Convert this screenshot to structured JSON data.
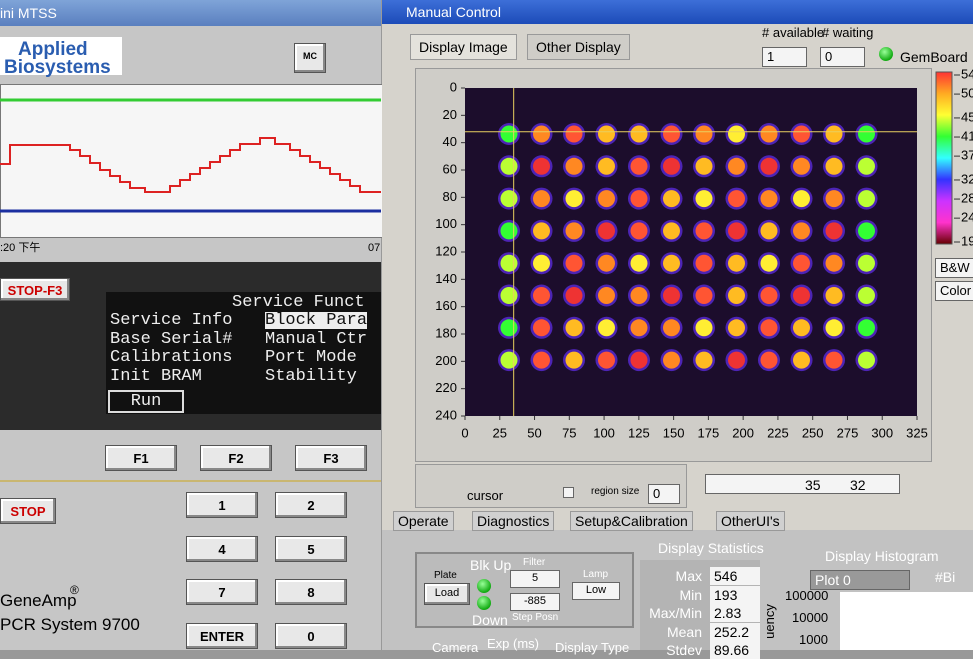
{
  "left_window": {
    "title": "ini MTSS",
    "logo": [
      "Applied",
      "Biosystems"
    ],
    "mc_button": "MC",
    "chart_time_start": ":20 下午",
    "chart_time_end": "07",
    "stop_f3": "STOP-F3",
    "menu": {
      "heading": "Service Funct",
      "items": [
        "Service Info",
        "Block Para",
        "Base Serial#",
        "Manual Ctr",
        "Calibrations",
        "Port Mode",
        "Init BRAM",
        "Stability"
      ],
      "run": "Run"
    },
    "function_keys": [
      "F1",
      "F2",
      "F3"
    ],
    "stop": "STOP",
    "keypad": [
      "1",
      "2",
      "4",
      "5",
      "7",
      "8",
      "ENTER",
      "0"
    ],
    "product": "GeneAmp",
    "product_mark": "®",
    "model": "PCR System 9700"
  },
  "right_window": {
    "title": "Manual Control",
    "tabs": [
      "Display Image",
      "Other Display"
    ],
    "available_label": "# available",
    "waiting_label": "# waiting",
    "available": 1,
    "waiting": 0,
    "board": "GemBoard",
    "plot": {
      "xticks": [
        0,
        25,
        50,
        75,
        100,
        125,
        150,
        175,
        200,
        225,
        250,
        275,
        300,
        325
      ],
      "yticks": [
        0,
        20,
        40,
        60,
        80,
        100,
        120,
        140,
        160,
        180,
        200,
        220,
        240
      ],
      "xlim": [
        0,
        325
      ],
      "ylim": [
        0,
        240
      ]
    },
    "colorbar": {
      "ticks": [
        54,
        50,
        45,
        41,
        37,
        32,
        28,
        24,
        19
      ]
    },
    "bw_button": "B&W",
    "color_button": "Color",
    "cursor_label": "cursor",
    "region_size_label": "region size",
    "region_size": 0,
    "cursor_x": 35,
    "cursor_y": 32,
    "bottom_tabs": [
      "Operate",
      "Diagnostics",
      "Setup&Calibration",
      "OtherUI's"
    ],
    "controls": {
      "plate": "Plate",
      "load": "Load",
      "blk_up": "Blk Up",
      "down": "Down",
      "filter": "Filter",
      "filter_value": 5,
      "step_value": -885,
      "step_posn": "Step Posn",
      "lamp": "Lamp",
      "lamp_value": "Low"
    },
    "statistics": {
      "title": "Display Statistics",
      "labels": [
        "Max",
        "Min",
        "Max/Min",
        "Mean",
        "Stdev"
      ],
      "values": [
        546,
        193,
        2.83,
        252.2,
        89.66
      ]
    },
    "histogram": {
      "title": "Display Histogram",
      "plot": "Plot 0",
      "bins_label": "#Bi",
      "axis_labels": [
        100000,
        10000,
        1000
      ],
      "axis_title": "uency"
    },
    "footer": [
      "Camera",
      "Exp (ms)",
      "Display Type"
    ]
  }
}
